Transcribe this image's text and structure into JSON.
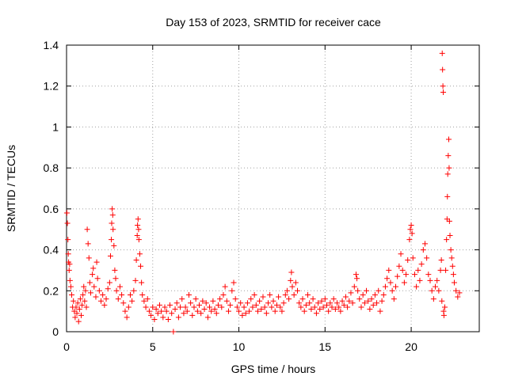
{
  "chart_data": {
    "type": "scatter",
    "title": "Day 153 of 2023, SRMTID for receiver cace",
    "xlabel": "GPS time / hours",
    "ylabel": "SRMTID / TECUs",
    "xlim": [
      0,
      23.95
    ],
    "ylim": [
      0,
      1.4
    ],
    "xticks": [
      0,
      5,
      10,
      15,
      20
    ],
    "xtick_labels": [
      "0",
      "5",
      "10",
      "15",
      "20"
    ],
    "yticks": [
      0,
      0.2,
      0.4,
      0.6,
      0.8,
      1.0,
      1.2,
      1.4
    ],
    "ytick_labels": [
      "0",
      "0.2",
      "0.4",
      "0.6",
      "0.8",
      "1",
      "1.2",
      "1.4"
    ],
    "grid": true,
    "marker": "+",
    "color": "#ff0000",
    "series": [
      {
        "name": "SRMTID",
        "points": [
          [
            0.02,
            0.58
          ],
          [
            0.05,
            0.53
          ],
          [
            0.08,
            0.45
          ],
          [
            0.1,
            0.38
          ],
          [
            0.12,
            0.34
          ],
          [
            0.15,
            0.3
          ],
          [
            0.18,
            0.33
          ],
          [
            0.2,
            0.25
          ],
          [
            0.25,
            0.22
          ],
          [
            0.3,
            0.18
          ],
          [
            0.35,
            0.12
          ],
          [
            0.4,
            0.15
          ],
          [
            0.45,
            0.1
          ],
          [
            0.5,
            0.07
          ],
          [
            0.55,
            0.12
          ],
          [
            0.6,
            0.09
          ],
          [
            0.65,
            0.14
          ],
          [
            0.7,
            0.05
          ],
          [
            0.75,
            0.11
          ],
          [
            0.8,
            0.16
          ],
          [
            0.85,
            0.08
          ],
          [
            0.9,
            0.13
          ],
          [
            0.95,
            0.18
          ],
          [
            1.0,
            0.22
          ],
          [
            1.05,
            0.15
          ],
          [
            1.1,
            0.2
          ],
          [
            1.15,
            0.12
          ],
          [
            1.2,
            0.5
          ],
          [
            1.25,
            0.43
          ],
          [
            1.3,
            0.36
          ],
          [
            1.35,
            0.24
          ],
          [
            1.4,
            0.19
          ],
          [
            1.5,
            0.28
          ],
          [
            1.55,
            0.31
          ],
          [
            1.6,
            0.22
          ],
          [
            1.7,
            0.17
          ],
          [
            1.75,
            0.34
          ],
          [
            1.8,
            0.26
          ],
          [
            1.9,
            0.2
          ],
          [
            2.0,
            0.15
          ],
          [
            2.1,
            0.18
          ],
          [
            2.2,
            0.13
          ],
          [
            2.3,
            0.16
          ],
          [
            2.4,
            0.21
          ],
          [
            2.5,
            0.24
          ],
          [
            2.55,
            0.37
          ],
          [
            2.6,
            0.45
          ],
          [
            2.62,
            0.53
          ],
          [
            2.65,
            0.6
          ],
          [
            2.68,
            0.57
          ],
          [
            2.7,
            0.5
          ],
          [
            2.75,
            0.42
          ],
          [
            2.8,
            0.3
          ],
          [
            2.85,
            0.26
          ],
          [
            2.9,
            0.2
          ],
          [
            3.0,
            0.16
          ],
          [
            3.1,
            0.22
          ],
          [
            3.2,
            0.18
          ],
          [
            3.3,
            0.14
          ],
          [
            3.4,
            0.1
          ],
          [
            3.5,
            0.07
          ],
          [
            3.6,
            0.12
          ],
          [
            3.7,
            0.18
          ],
          [
            3.8,
            0.15
          ],
          [
            3.9,
            0.2
          ],
          [
            4.0,
            0.25
          ],
          [
            4.05,
            0.35
          ],
          [
            4.1,
            0.47
          ],
          [
            4.12,
            0.52
          ],
          [
            4.15,
            0.55
          ],
          [
            4.18,
            0.5
          ],
          [
            4.2,
            0.45
          ],
          [
            4.25,
            0.38
          ],
          [
            4.3,
            0.32
          ],
          [
            4.35,
            0.24
          ],
          [
            4.4,
            0.18
          ],
          [
            4.5,
            0.15
          ],
          [
            4.6,
            0.12
          ],
          [
            4.7,
            0.16
          ],
          [
            4.8,
            0.1
          ],
          [
            4.9,
            0.08
          ],
          [
            5.0,
            0.12
          ],
          [
            5.1,
            0.06
          ],
          [
            5.2,
            0.11
          ],
          [
            5.3,
            0.09
          ],
          [
            5.4,
            0.13
          ],
          [
            5.5,
            0.1
          ],
          [
            5.6,
            0.07
          ],
          [
            5.7,
            0.12
          ],
          [
            5.8,
            0.1
          ],
          [
            5.9,
            0.06
          ],
          [
            6.0,
            0.13
          ],
          [
            6.1,
            0.09
          ],
          [
            6.2,
            0.0
          ],
          [
            6.3,
            0.11
          ],
          [
            6.4,
            0.14
          ],
          [
            6.5,
            0.07
          ],
          [
            6.6,
            0.12
          ],
          [
            6.7,
            0.16
          ],
          [
            6.8,
            0.09
          ],
          [
            6.9,
            0.12
          ],
          [
            7.0,
            0.1
          ],
          [
            7.1,
            0.18
          ],
          [
            7.2,
            0.14
          ],
          [
            7.3,
            0.08
          ],
          [
            7.4,
            0.12
          ],
          [
            7.5,
            0.16
          ],
          [
            7.6,
            0.1
          ],
          [
            7.7,
            0.13
          ],
          [
            7.8,
            0.09
          ],
          [
            7.9,
            0.15
          ],
          [
            8.0,
            0.11
          ],
          [
            8.1,
            0.14
          ],
          [
            8.2,
            0.07
          ],
          [
            8.3,
            0.12
          ],
          [
            8.4,
            0.1
          ],
          [
            8.5,
            0.15
          ],
          [
            8.6,
            0.11
          ],
          [
            8.7,
            0.09
          ],
          [
            8.8,
            0.13
          ],
          [
            8.9,
            0.16
          ],
          [
            9.0,
            0.12
          ],
          [
            9.1,
            0.18
          ],
          [
            9.2,
            0.22
          ],
          [
            9.3,
            0.15
          ],
          [
            9.4,
            0.1
          ],
          [
            9.5,
            0.13
          ],
          [
            9.6,
            0.2
          ],
          [
            9.7,
            0.24
          ],
          [
            9.8,
            0.16
          ],
          [
            9.9,
            0.12
          ],
          [
            10.0,
            0.1
          ],
          [
            10.1,
            0.14
          ],
          [
            10.2,
            0.08
          ],
          [
            10.3,
            0.12
          ],
          [
            10.4,
            0.09
          ],
          [
            10.5,
            0.14
          ],
          [
            10.6,
            0.1
          ],
          [
            10.7,
            0.16
          ],
          [
            10.8,
            0.12
          ],
          [
            10.9,
            0.18
          ],
          [
            11.0,
            0.13
          ],
          [
            11.1,
            0.1
          ],
          [
            11.2,
            0.15
          ],
          [
            11.3,
            0.11
          ],
          [
            11.4,
            0.17
          ],
          [
            11.5,
            0.12
          ],
          [
            11.6,
            0.09
          ],
          [
            11.7,
            0.14
          ],
          [
            11.8,
            0.18
          ],
          [
            11.9,
            0.12
          ],
          [
            12.0,
            0.15
          ],
          [
            12.1,
            0.1
          ],
          [
            12.2,
            0.13
          ],
          [
            12.3,
            0.17
          ],
          [
            12.4,
            0.12
          ],
          [
            12.5,
            0.1
          ],
          [
            12.6,
            0.14
          ],
          [
            12.7,
            0.18
          ],
          [
            12.8,
            0.2
          ],
          [
            12.9,
            0.16
          ],
          [
            13.0,
            0.25
          ],
          [
            13.05,
            0.29
          ],
          [
            13.1,
            0.22
          ],
          [
            13.2,
            0.18
          ],
          [
            13.3,
            0.24
          ],
          [
            13.4,
            0.2
          ],
          [
            13.5,
            0.14
          ],
          [
            13.6,
            0.12
          ],
          [
            13.7,
            0.16
          ],
          [
            13.8,
            0.1
          ],
          [
            13.9,
            0.13
          ],
          [
            14.0,
            0.18
          ],
          [
            14.1,
            0.14
          ],
          [
            14.2,
            0.11
          ],
          [
            14.3,
            0.16
          ],
          [
            14.4,
            0.12
          ],
          [
            14.5,
            0.09
          ],
          [
            14.6,
            0.14
          ],
          [
            14.7,
            0.11
          ],
          [
            14.8,
            0.15
          ],
          [
            14.9,
            0.12
          ],
          [
            15.0,
            0.16
          ],
          [
            15.1,
            0.13
          ],
          [
            15.2,
            0.1
          ],
          [
            15.3,
            0.14
          ],
          [
            15.4,
            0.12
          ],
          [
            15.5,
            0.16
          ],
          [
            15.6,
            0.11
          ],
          [
            15.7,
            0.14
          ],
          [
            15.8,
            0.12
          ],
          [
            15.9,
            0.1
          ],
          [
            16.0,
            0.15
          ],
          [
            16.1,
            0.13
          ],
          [
            16.2,
            0.17
          ],
          [
            16.3,
            0.12
          ],
          [
            16.4,
            0.15
          ],
          [
            16.5,
            0.19
          ],
          [
            16.6,
            0.14
          ],
          [
            16.7,
            0.22
          ],
          [
            16.8,
            0.28
          ],
          [
            16.85,
            0.26
          ],
          [
            16.9,
            0.2
          ],
          [
            17.0,
            0.16
          ],
          [
            17.1,
            0.12
          ],
          [
            17.2,
            0.18
          ],
          [
            17.3,
            0.14
          ],
          [
            17.4,
            0.2
          ],
          [
            17.5,
            0.15
          ],
          [
            17.6,
            0.11
          ],
          [
            17.7,
            0.16
          ],
          [
            17.8,
            0.13
          ],
          [
            17.9,
            0.18
          ],
          [
            18.0,
            0.14
          ],
          [
            18.1,
            0.2
          ],
          [
            18.2,
            0.1
          ],
          [
            18.3,
            0.15
          ],
          [
            18.4,
            0.18
          ],
          [
            18.5,
            0.22
          ],
          [
            18.6,
            0.26
          ],
          [
            18.7,
            0.3
          ],
          [
            18.8,
            0.24
          ],
          [
            18.9,
            0.2
          ],
          [
            19.0,
            0.16
          ],
          [
            19.1,
            0.22
          ],
          [
            19.2,
            0.27
          ],
          [
            19.3,
            0.32
          ],
          [
            19.4,
            0.38
          ],
          [
            19.5,
            0.3
          ],
          [
            19.6,
            0.24
          ],
          [
            19.7,
            0.28
          ],
          [
            19.8,
            0.35
          ],
          [
            19.9,
            0.45
          ],
          [
            19.95,
            0.5
          ],
          [
            20.0,
            0.52
          ],
          [
            20.05,
            0.48
          ],
          [
            20.1,
            0.36
          ],
          [
            20.2,
            0.28
          ],
          [
            20.3,
            0.22
          ],
          [
            20.4,
            0.3
          ],
          [
            20.5,
            0.25
          ],
          [
            20.6,
            0.33
          ],
          [
            20.7,
            0.4
          ],
          [
            20.8,
            0.43
          ],
          [
            20.9,
            0.36
          ],
          [
            21.0,
            0.28
          ],
          [
            21.1,
            0.25
          ],
          [
            21.2,
            0.2
          ],
          [
            21.3,
            0.16
          ],
          [
            21.4,
            0.22
          ],
          [
            21.5,
            0.25
          ],
          [
            21.6,
            0.2
          ],
          [
            21.7,
            0.3
          ],
          [
            21.75,
            0.35
          ],
          [
            21.78,
            0.15
          ],
          [
            21.8,
            1.36
          ],
          [
            21.82,
            1.28
          ],
          [
            21.84,
            1.2
          ],
          [
            21.86,
            1.17
          ],
          [
            21.88,
            0.1
          ],
          [
            21.9,
            0.08
          ],
          [
            21.95,
            0.12
          ],
          [
            22.0,
            0.3
          ],
          [
            22.05,
            0.45
          ],
          [
            22.08,
            0.55
          ],
          [
            22.1,
            0.66
          ],
          [
            22.12,
            0.77
          ],
          [
            22.15,
            0.86
          ],
          [
            22.18,
            0.94
          ],
          [
            22.2,
            0.8
          ],
          [
            22.22,
            0.54
          ],
          [
            22.25,
            0.47
          ],
          [
            22.3,
            0.4
          ],
          [
            22.35,
            0.36
          ],
          [
            22.4,
            0.32
          ],
          [
            22.45,
            0.28
          ],
          [
            22.5,
            0.24
          ],
          [
            22.6,
            0.2
          ],
          [
            22.7,
            0.17
          ],
          [
            22.8,
            0.19
          ]
        ]
      }
    ]
  }
}
